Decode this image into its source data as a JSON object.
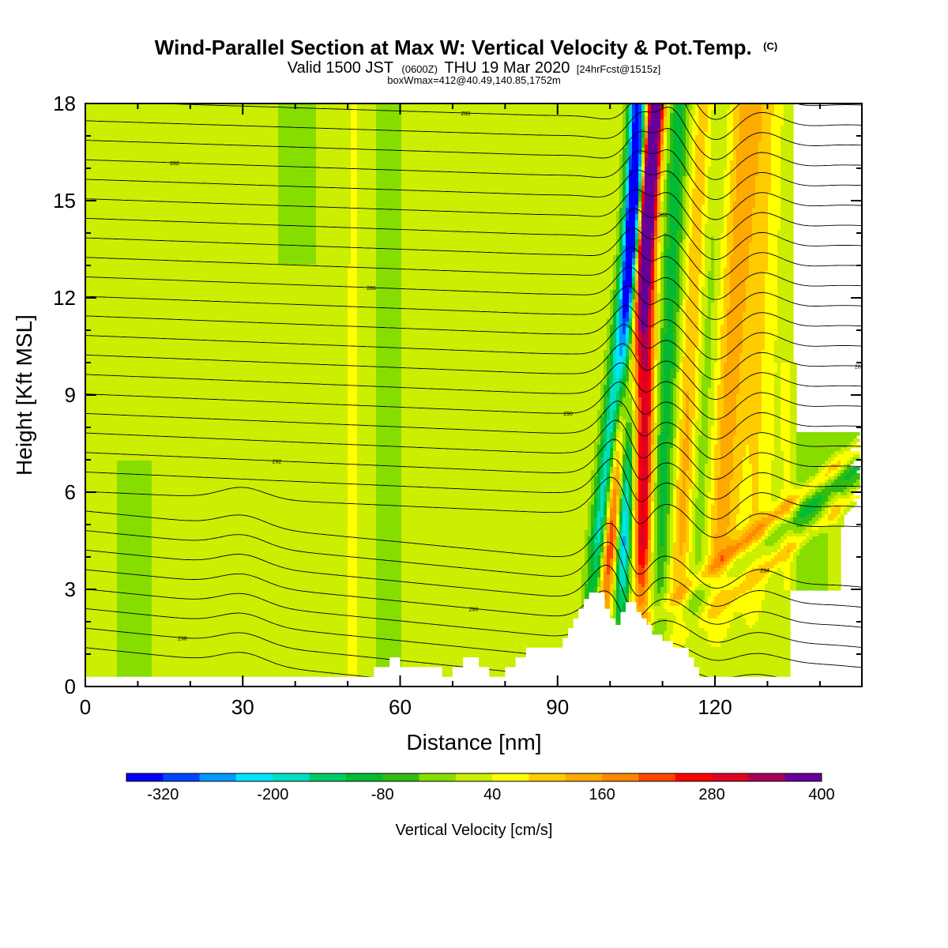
{
  "chart_data": {
    "type": "heatmap",
    "title": "Wind-Parallel Section at Max W: Vertical Velocity & Pot.Temp.",
    "title_mark": "(C)",
    "subtitle_parts": [
      "Valid 1500 JST",
      "(0600Z)",
      "THU 19 Mar 2020",
      "[24hrFcst@1515z]"
    ],
    "subtitle2": "boxWmax=412@40.49,140.85,1752m",
    "xlabel": "Distance [nm]",
    "ylabel": "Height [Kft MSL]",
    "xlim": [
      0,
      148
    ],
    "ylim": [
      0,
      18
    ],
    "x_ticks": [
      "0",
      "30",
      "60",
      "90",
      "120"
    ],
    "x_tick_values": [
      0,
      30,
      60,
      90,
      120
    ],
    "y_ticks": [
      "0",
      "3",
      "6",
      "9",
      "12",
      "15",
      "18"
    ],
    "y_tick_values": [
      0,
      3,
      6,
      9,
      12,
      15,
      18
    ],
    "grid": false,
    "colorbar": {
      "title": "Vertical Velocity [cm/s]",
      "colors": [
        "#0000ff",
        "#0044ff",
        "#0099ff",
        "#00e5ff",
        "#00e0c0",
        "#00cc66",
        "#00bb33",
        "#33bb11",
        "#88dd00",
        "#ccee00",
        "#ffff00",
        "#ffcc00",
        "#ffaa00",
        "#ff8800",
        "#ff4400",
        "#ff0000",
        "#dd0022",
        "#aa0055",
        "#660099"
      ],
      "tick_labels": [
        "-320",
        "-200",
        "-80",
        "40",
        "160",
        "280",
        "400"
      ],
      "tick_values": [
        -320,
        -200,
        -80,
        40,
        160,
        280,
        400
      ],
      "bounds": [
        -360,
        400
      ]
    },
    "terrain_kft": [
      [
        0,
        0.3
      ],
      [
        55,
        0.3
      ],
      [
        55,
        0.6
      ],
      [
        58,
        0.6
      ],
      [
        58,
        0.9
      ],
      [
        60,
        0.9
      ],
      [
        60,
        0.6
      ],
      [
        68,
        0.6
      ],
      [
        68,
        0.3
      ],
      [
        70,
        0.3
      ],
      [
        70,
        0.6
      ],
      [
        72,
        0.6
      ],
      [
        72,
        0.9
      ],
      [
        75,
        0.9
      ],
      [
        75,
        0.6
      ],
      [
        77,
        0.6
      ],
      [
        77,
        0.3
      ],
      [
        80,
        0.3
      ],
      [
        80,
        0.6
      ],
      [
        82,
        0.6
      ],
      [
        82,
        0.9
      ],
      [
        84,
        0.9
      ],
      [
        84,
        1.2
      ],
      [
        91,
        1.2
      ],
      [
        91,
        1.5
      ],
      [
        92,
        1.5
      ],
      [
        92,
        1.8
      ],
      [
        93,
        1.8
      ],
      [
        93,
        2.1
      ],
      [
        94,
        2.1
      ],
      [
        94,
        2.4
      ],
      [
        95,
        2.4
      ],
      [
        95,
        2.7
      ],
      [
        96,
        2.7
      ],
      [
        96,
        2.9
      ],
      [
        99,
        2.9
      ],
      [
        99,
        2.4
      ],
      [
        100,
        2.4
      ],
      [
        100,
        2.1
      ],
      [
        101,
        2.1
      ],
      [
        101,
        1.9
      ],
      [
        102,
        1.9
      ],
      [
        102,
        2.3
      ],
      [
        103,
        2.3
      ],
      [
        103,
        2.6
      ],
      [
        105,
        2.6
      ],
      [
        105,
        2.3
      ],
      [
        106,
        2.3
      ],
      [
        106,
        2.1
      ],
      [
        107,
        2.1
      ],
      [
        107,
        1.9
      ],
      [
        108,
        1.9
      ],
      [
        108,
        1.6
      ],
      [
        110,
        1.6
      ],
      [
        110,
        1.4
      ],
      [
        112,
        1.4
      ],
      [
        112,
        1.2
      ],
      [
        115,
        1.2
      ],
      [
        115,
        0.9
      ],
      [
        116,
        0.9
      ],
      [
        116,
        0.6
      ],
      [
        117,
        0.6
      ],
      [
        117,
        0.3
      ],
      [
        148,
        0.3
      ]
    ],
    "theta_label_values": [
      "298",
      "296",
      "294",
      "292",
      "290",
      "288",
      "286",
      "284",
      "282",
      "280",
      "278",
      "276",
      "274"
    ]
  }
}
